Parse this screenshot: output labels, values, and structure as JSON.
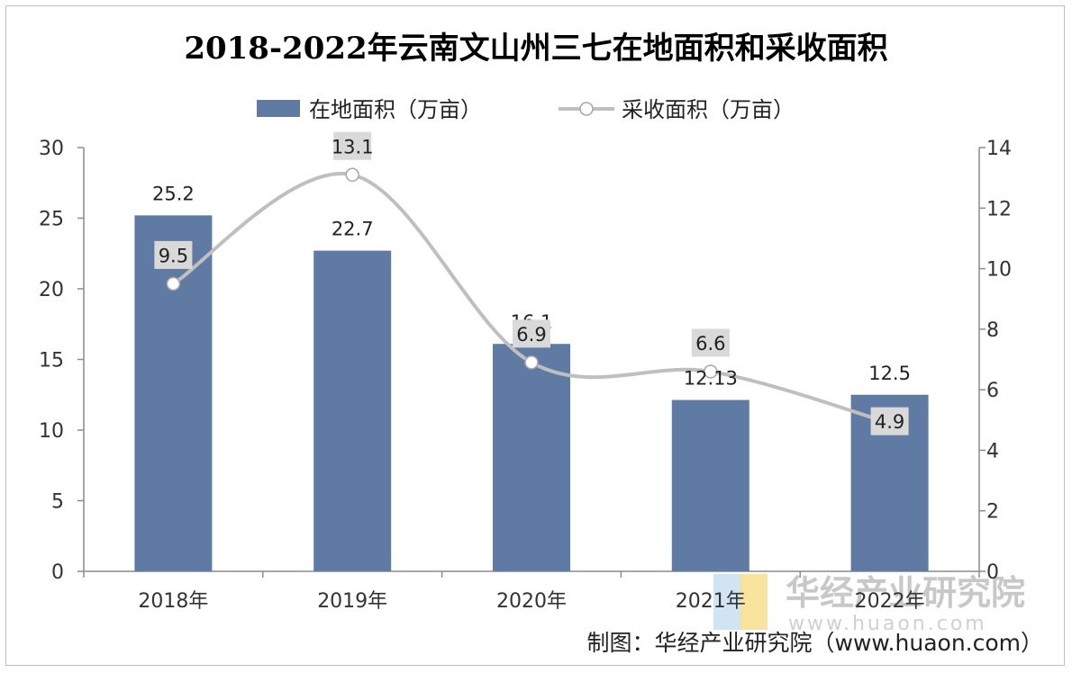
{
  "chart_data": {
    "type": "bar",
    "title": "2018-2022年云南文山州三七在地面积和采收面积",
    "categories": [
      "2018年",
      "2019年",
      "2020年",
      "2021年",
      "2022年"
    ],
    "series": [
      {
        "name": "在地面积（万亩）",
        "type": "bar",
        "axis": "left",
        "values": [
          25.2,
          22.7,
          16.1,
          12.13,
          12.5
        ],
        "labels": [
          "25.2",
          "22.7",
          "16.1",
          "12.13",
          "12.5"
        ],
        "color": "#5f7aa3"
      },
      {
        "name": "采收面积（万亩）",
        "type": "line",
        "axis": "right",
        "values": [
          9.5,
          13.1,
          6.9,
          6.6,
          4.9
        ],
        "labels": [
          "9.5",
          "13.1",
          "6.9",
          "6.6",
          "4.9"
        ],
        "color": "#bfbfbf"
      }
    ],
    "y_left": {
      "ylim": [
        0,
        30
      ],
      "ticks": [
        "0",
        "5",
        "10",
        "15",
        "20",
        "25",
        "30"
      ]
    },
    "y_right": {
      "ylim": [
        0,
        14
      ],
      "ticks": [
        "0",
        "2",
        "4",
        "6",
        "8",
        "10",
        "12",
        "14"
      ]
    },
    "legend_position": "top-center",
    "grid": false
  },
  "watermark": {
    "name": "华经产业研究院",
    "url": "www.huaon.com"
  },
  "source": "制图：华经产业研究院（www.huaon.com）"
}
